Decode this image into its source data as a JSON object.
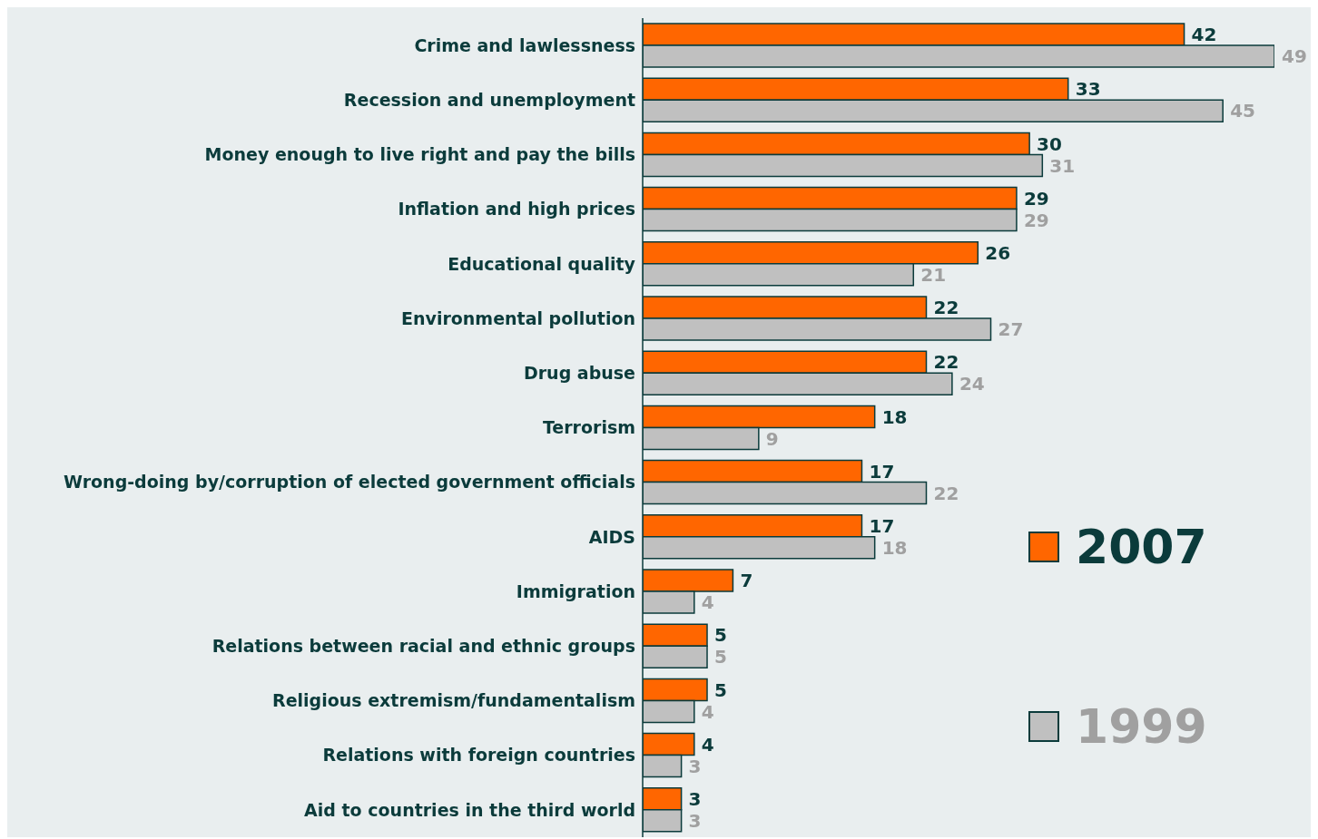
{
  "chart_data": {
    "type": "bar",
    "orientation": "horizontal",
    "data_labels": true,
    "legend": "right",
    "grid": false,
    "categories": [
      "Crime and lawlessness",
      "Recession and unemployment",
      "Money enough to live right and pay the bills",
      "Inflation and high prices",
      "Educational quality",
      "Environmental pollution",
      "Drug abuse",
      "Terrorism",
      "Wrong-doing by/corruption of elected government officials",
      "AIDS",
      "Immigration",
      "Relations between racial and ethnic groups",
      "Religious extremism/fundamentalism",
      "Relations with foreign countries",
      "Aid to countries in the third world"
    ],
    "series": [
      {
        "name": "2007",
        "color": "#ff6600",
        "values": [
          42,
          33,
          30,
          29,
          26,
          22,
          22,
          18,
          17,
          17,
          7,
          5,
          5,
          4,
          3
        ]
      },
      {
        "name": "1999",
        "color": "#c0c0c0",
        "values": [
          49,
          45,
          31,
          29,
          21,
          27,
          24,
          9,
          22,
          18,
          4,
          5,
          4,
          3,
          3
        ]
      }
    ]
  }
}
